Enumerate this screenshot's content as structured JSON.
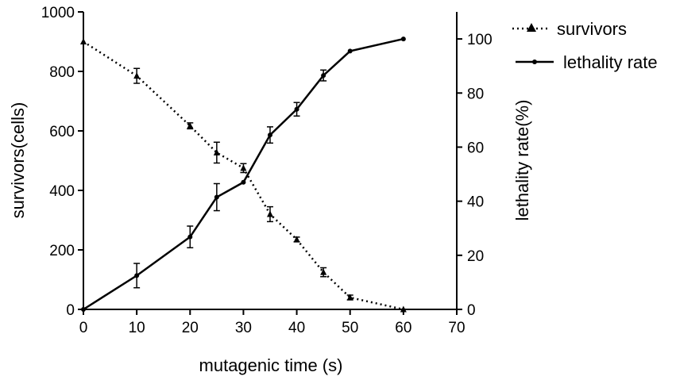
{
  "chart_data": {
    "type": "line",
    "xlabel": "mutagenic time (s)",
    "ylabel_left": "survivors(cells)",
    "ylabel_right": "lethality rate(%)",
    "xlim": [
      0,
      70
    ],
    "ylim_left": [
      0,
      1000
    ],
    "ylim_right": [
      0,
      110
    ],
    "x_ticks": [
      0,
      10,
      20,
      30,
      40,
      50,
      60,
      70
    ],
    "y_left_ticks": [
      0,
      200,
      400,
      600,
      800,
      1000
    ],
    "y_right_ticks": [
      0,
      20,
      40,
      60,
      80,
      100
    ],
    "grid": false,
    "legend_position": "top-right",
    "series": [
      {
        "name": "survivors",
        "axis": "left",
        "style": "dotted",
        "marker": "triangle",
        "x": [
          0,
          10,
          20,
          25,
          30,
          35,
          40,
          45,
          50,
          60
        ],
        "y": [
          900,
          785,
          617,
          527,
          475,
          320,
          235,
          125,
          40,
          0
        ],
        "err": [
          0,
          25,
          10,
          35,
          15,
          25,
          8,
          15,
          8,
          0
        ]
      },
      {
        "name": "lethality rate",
        "axis": "right",
        "style": "solid",
        "marker": "circle",
        "x": [
          0,
          10,
          20,
          25,
          30,
          35,
          40,
          45,
          50,
          60
        ],
        "y": [
          0,
          12.5,
          26.8,
          41.5,
          47,
          64.5,
          74,
          86.5,
          95.5,
          100
        ],
        "err": [
          0,
          4.5,
          4,
          5,
          0,
          3,
          2.5,
          2,
          0,
          0
        ]
      }
    ]
  }
}
